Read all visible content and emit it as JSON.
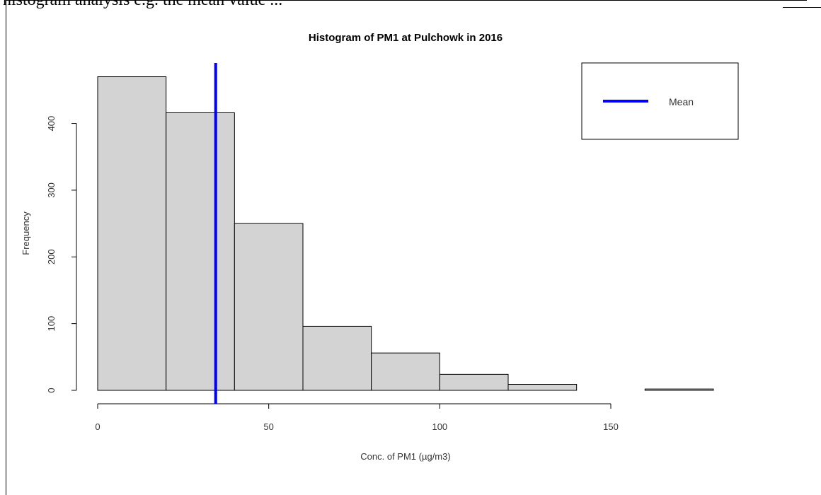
{
  "document": {
    "cut_text": "histogram analysis e.g. the mean value ... "
  },
  "chart_data": {
    "type": "bar",
    "title": "Histogram of PM1 at Pulchowk in 2016",
    "xlabel": "Conc. of PM1 (µg/m3)",
    "ylabel": "Frequency",
    "bins": [
      {
        "from": 0,
        "to": 20,
        "count": 470
      },
      {
        "from": 20,
        "to": 40,
        "count": 416
      },
      {
        "from": 40,
        "to": 60,
        "count": 250
      },
      {
        "from": 60,
        "to": 80,
        "count": 96
      },
      {
        "from": 80,
        "to": 100,
        "count": 56
      },
      {
        "from": 100,
        "to": 120,
        "count": 24
      },
      {
        "from": 120,
        "to": 140,
        "count": 9
      },
      {
        "from": 140,
        "to": 160,
        "count": 0
      },
      {
        "from": 160,
        "to": 180,
        "count": 2
      }
    ],
    "xlim": [
      0,
      180
    ],
    "ylim": [
      0,
      470
    ],
    "xticks": [
      0,
      50,
      100,
      150
    ],
    "yticks": [
      0,
      100,
      200,
      300,
      400
    ],
    "mean_line": {
      "value": 34.5,
      "label": "Mean",
      "color": "#0000ff"
    },
    "bar_fill": "#d3d3d3",
    "bar_stroke": "#000000",
    "legend": {
      "position": "top-right",
      "entries": [
        "Mean"
      ]
    },
    "grid": false
  }
}
